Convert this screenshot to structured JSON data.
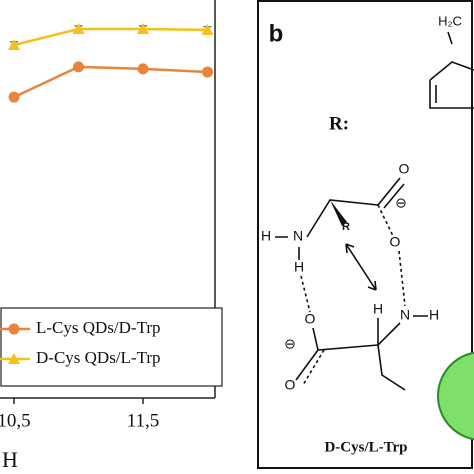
{
  "chart_data": {
    "type": "line",
    "xlabel": "H",
    "xlim": [
      10.39,
      12.06
    ],
    "ylim": [
      0,
      100
    ],
    "xticks": [
      {
        "value": 10.5,
        "label": "10,5"
      },
      {
        "value": 11.5,
        "label": "11,5"
      }
    ],
    "x": [
      10.5,
      11,
      11.5,
      12
    ],
    "series": [
      {
        "name": "L-Cys QDs/D-Trp",
        "color": "#e8853a",
        "marker": "circle",
        "values": [
          75.6,
          83.2,
          82.7,
          81.9
        ],
        "errors": [
          0.8,
          0.8,
          0.8,
          0.8
        ]
      },
      {
        "name": "D-Cys QDs/L-Trp",
        "color": "#f5c018",
        "marker": "triangle",
        "values": [
          88.7,
          92.7,
          92.7,
          92.5
        ],
        "errors": [
          0.8,
          0.8,
          0.8,
          0.8
        ]
      }
    ],
    "legend": "lower-left"
  },
  "diagram": {
    "panel": "b",
    "r_label": "R:",
    "ring_label": "H₂C",
    "atoms": [
      "H",
      "N",
      "H",
      "R",
      "O",
      "⊖",
      "O",
      "H",
      "N",
      "H",
      "O",
      "⊖",
      "O"
    ],
    "caption": "D-Cys/L-Trp"
  }
}
